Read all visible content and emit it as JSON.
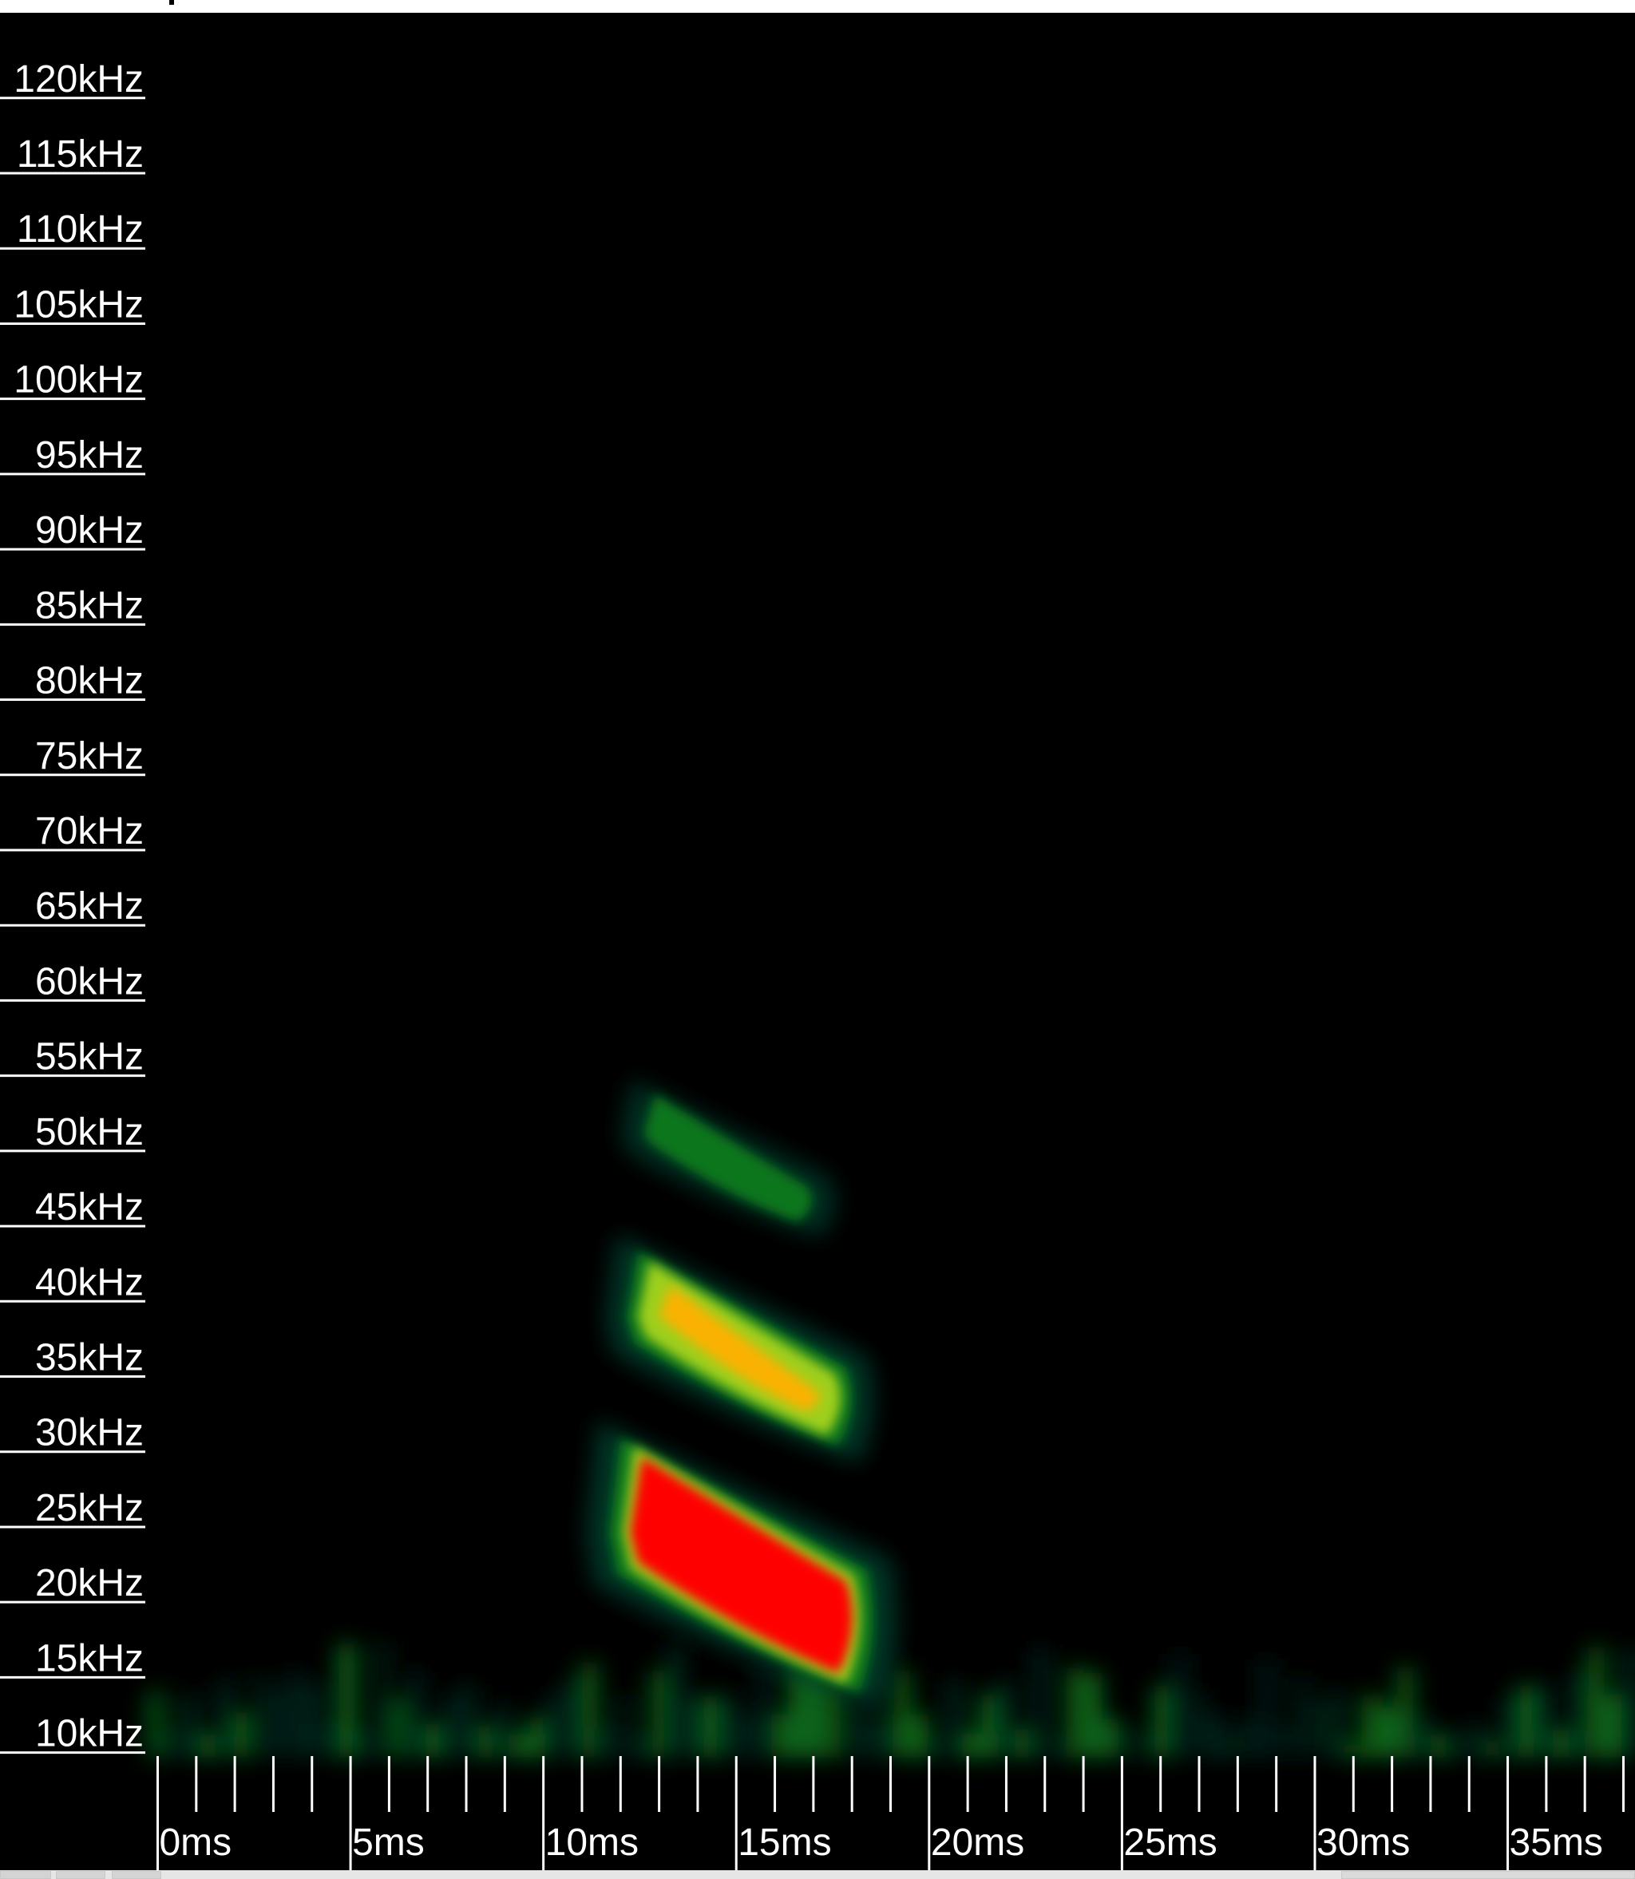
{
  "window": {
    "background": "#000000",
    "top_bar_color": "#ffffff"
  },
  "chart_data": {
    "type": "heatmap",
    "title": "",
    "xlabel": "",
    "ylabel": "",
    "x_unit": "ms",
    "y_unit": "kHz",
    "xlim": [
      -0.3,
      38.3
    ],
    "ylim": [
      8.6,
      124.5
    ],
    "x_ticks_major": [
      0,
      5,
      10,
      15,
      20,
      25,
      30,
      35
    ],
    "x_tick_labels": [
      "0ms",
      "5ms",
      "10ms",
      "15ms",
      "20ms",
      "25ms",
      "30ms",
      "35ms"
    ],
    "x_ticks_minor_step": 1,
    "y_ticks": [
      120,
      115,
      110,
      105,
      100,
      95,
      90,
      85,
      80,
      75,
      70,
      65,
      60,
      55,
      50,
      45,
      40,
      35,
      30,
      25,
      20,
      15,
      10
    ],
    "y_tick_labels": [
      "120kHz",
      "115kHz",
      "110kHz",
      "105kHz",
      "100kHz",
      "95kHz",
      "90kHz",
      "85kHz",
      "80kHz",
      "75kHz",
      "70kHz",
      "65kHz",
      "60kHz",
      "55kHz",
      "50kHz",
      "45kHz",
      "40kHz",
      "35kHz",
      "30kHz",
      "25kHz",
      "20kHz",
      "15kHz",
      "10kHz"
    ],
    "grid": false,
    "colormap": [
      "#000000",
      "#003a2a",
      "#0a7a1e",
      "#9ecf1a",
      "#ffb000",
      "#ff0000"
    ],
    "blobs": [
      {
        "t_start": 12.6,
        "t_end": 16.8,
        "f_start": 51.8,
        "f_end": 46.8,
        "intensity": 0.45
      },
      {
        "t_start": 12.5,
        "t_end": 17.5,
        "f_start": 40.5,
        "f_end": 34.2,
        "intensity": 0.75
      },
      {
        "t_start": 12.2,
        "t_end": 17.9,
        "f_start": 27.7,
        "f_end": 20.5,
        "intensity": 1.0
      }
    ],
    "noise_band": {
      "f_range": [
        9.5,
        16.5
      ],
      "intensity": 0.3
    }
  }
}
